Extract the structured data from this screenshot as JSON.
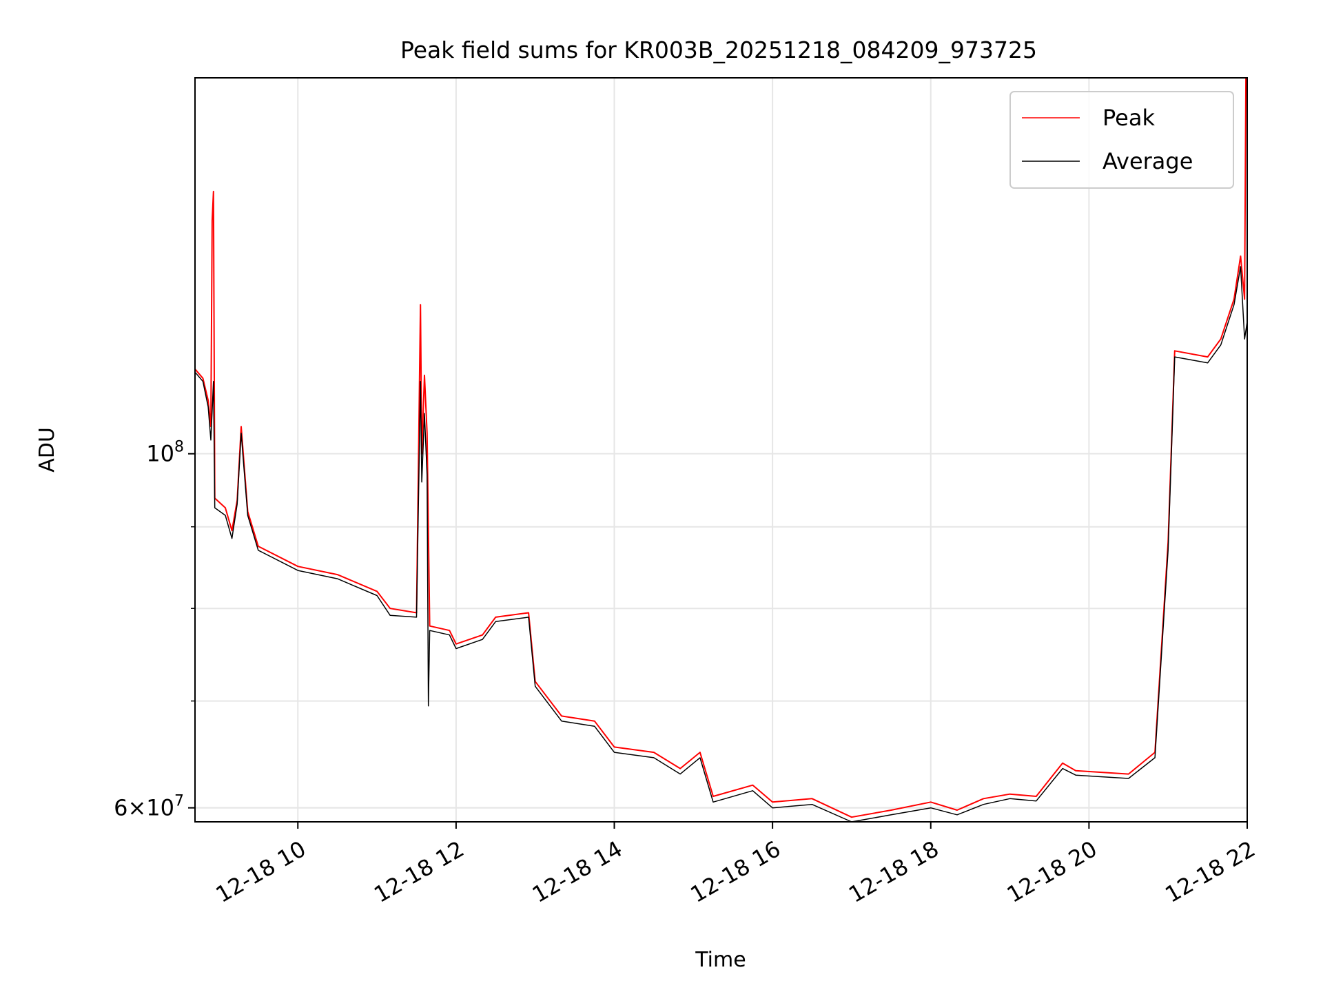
{
  "chart_data": {
    "type": "line",
    "title": "Peak field sums for KR003B_20251218_084209_973725",
    "xlabel": "Time",
    "ylabel": "ADU",
    "x_axis": {
      "scale": "time",
      "range": [
        "2025-12-18 08:42",
        "2025-12-18 22:00"
      ],
      "ticks": [
        "2025-12-18 10:00",
        "2025-12-18 12:00",
        "2025-12-18 14:00",
        "2025-12-18 16:00",
        "2025-12-18 18:00",
        "2025-12-18 20:00",
        "2025-12-18 22:00"
      ],
      "tick_labels": [
        "12-18 10",
        "12-18 12",
        "12-18 14",
        "12-18 16",
        "12-18 18",
        "12-18 20",
        "12-18 22"
      ]
    },
    "y_axis": {
      "scale": "log",
      "range": [
        58800000,
        172000000
      ],
      "major_tick_values": [
        100000000,
        60000000
      ],
      "major_tick_labels": [
        {
          "base": "10",
          "exp": "8"
        },
        {
          "coef": "6",
          "base": "10",
          "exp": "7"
        }
      ],
      "minor_ticks": [
        60000000,
        70000000,
        80000000,
        90000000
      ]
    },
    "grid": true,
    "legend": {
      "position": "top-right",
      "entries": [
        "Peak",
        "Average"
      ]
    },
    "series": [
      {
        "name": "Peak",
        "color": "#ff0000",
        "points": [
          [
            "2025-12-18 08:42",
            113000000
          ],
          [
            "2025-12-18 08:48",
            111500000
          ],
          [
            "2025-12-18 08:52",
            108000000
          ],
          [
            "2025-12-18 08:54",
            104000000
          ],
          [
            "2025-12-18 08:55",
            140000000
          ],
          [
            "2025-12-18 08:56",
            146000000
          ],
          [
            "2025-12-18 08:57",
            93800000
          ],
          [
            "2025-12-18 09:05",
            92500000
          ],
          [
            "2025-12-18 09:10",
            89500000
          ],
          [
            "2025-12-18 09:14",
            93500000
          ],
          [
            "2025-12-18 09:17",
            104000000
          ],
          [
            "2025-12-18 09:22",
            92000000
          ],
          [
            "2025-12-18 09:30",
            87500000
          ],
          [
            "2025-12-18 10:00",
            85000000
          ],
          [
            "2025-12-18 10:30",
            84000000
          ],
          [
            "2025-12-18 11:00",
            82000000
          ],
          [
            "2025-12-18 11:10",
            80000000
          ],
          [
            "2025-12-18 11:30",
            79500000
          ],
          [
            "2025-12-18 11:33",
            124000000
          ],
          [
            "2025-12-18 11:34",
            100000000
          ],
          [
            "2025-12-18 11:36",
            112000000
          ],
          [
            "2025-12-18 11:38",
            103000000
          ],
          [
            "2025-12-18 11:40",
            78000000
          ],
          [
            "2025-12-18 11:55",
            77500000
          ],
          [
            "2025-12-18 12:00",
            76000000
          ],
          [
            "2025-12-18 12:20",
            77000000
          ],
          [
            "2025-12-18 12:30",
            79000000
          ],
          [
            "2025-12-18 12:55",
            79500000
          ],
          [
            "2025-12-18 13:00",
            72000000
          ],
          [
            "2025-12-18 13:20",
            68500000
          ],
          [
            "2025-12-18 13:45",
            68000000
          ],
          [
            "2025-12-18 14:00",
            65500000
          ],
          [
            "2025-12-18 14:30",
            65000000
          ],
          [
            "2025-12-18 14:50",
            63500000
          ],
          [
            "2025-12-18 15:05",
            65000000
          ],
          [
            "2025-12-18 15:15",
            61000000
          ],
          [
            "2025-12-18 15:45",
            62000000
          ],
          [
            "2025-12-18 16:00",
            60500000
          ],
          [
            "2025-12-18 16:30",
            60800000
          ],
          [
            "2025-12-18 17:00",
            59200000
          ],
          [
            "2025-12-18 17:30",
            59800000
          ],
          [
            "2025-12-18 18:00",
            60500000
          ],
          [
            "2025-12-18 18:20",
            59800000
          ],
          [
            "2025-12-18 18:40",
            60800000
          ],
          [
            "2025-12-18 19:00",
            61200000
          ],
          [
            "2025-12-18 19:20",
            61000000
          ],
          [
            "2025-12-18 19:40",
            64000000
          ],
          [
            "2025-12-18 19:50",
            63300000
          ],
          [
            "2025-12-18 20:30",
            63000000
          ],
          [
            "2025-12-18 20:50",
            65000000
          ],
          [
            "2025-12-18 21:00",
            88000000
          ],
          [
            "2025-12-18 21:05",
            116000000
          ],
          [
            "2025-12-18 21:30",
            115000000
          ],
          [
            "2025-12-18 21:40",
            118000000
          ],
          [
            "2025-12-18 21:50",
            125000000
          ],
          [
            "2025-12-18 21:55",
            133000000
          ],
          [
            "2025-12-18 21:58",
            125000000
          ],
          [
            "2025-12-18 21:59",
            172000000
          ],
          [
            "2025-12-18 22:00",
            170000000
          ]
        ]
      },
      {
        "name": "Average",
        "color": "#000000",
        "points": [
          [
            "2025-12-18 08:42",
            112500000
          ],
          [
            "2025-12-18 08:48",
            111000000
          ],
          [
            "2025-12-18 08:52",
            107000000
          ],
          [
            "2025-12-18 08:54",
            102000000
          ],
          [
            "2025-12-18 08:56",
            111000000
          ],
          [
            "2025-12-18 08:57",
            92500000
          ],
          [
            "2025-12-18 09:05",
            91500000
          ],
          [
            "2025-12-18 09:10",
            88500000
          ],
          [
            "2025-12-18 09:14",
            93000000
          ],
          [
            "2025-12-18 09:17",
            103000000
          ],
          [
            "2025-12-18 09:22",
            91500000
          ],
          [
            "2025-12-18 09:30",
            87000000
          ],
          [
            "2025-12-18 10:00",
            84500000
          ],
          [
            "2025-12-18 10:30",
            83500000
          ],
          [
            "2025-12-18 11:00",
            81500000
          ],
          [
            "2025-12-18 11:10",
            79200000
          ],
          [
            "2025-12-18 11:30",
            79000000
          ],
          [
            "2025-12-18 11:33",
            111000000
          ],
          [
            "2025-12-18 11:34",
            96000000
          ],
          [
            "2025-12-18 11:36",
            106000000
          ],
          [
            "2025-12-18 11:38",
            97000000
          ],
          [
            "2025-12-18 11:39",
            69500000
          ],
          [
            "2025-12-18 11:40",
            77500000
          ],
          [
            "2025-12-18 11:55",
            77000000
          ],
          [
            "2025-12-18 12:00",
            75500000
          ],
          [
            "2025-12-18 12:20",
            76500000
          ],
          [
            "2025-12-18 12:30",
            78500000
          ],
          [
            "2025-12-18 12:55",
            79000000
          ],
          [
            "2025-12-18 13:00",
            71500000
          ],
          [
            "2025-12-18 13:20",
            68000000
          ],
          [
            "2025-12-18 13:45",
            67500000
          ],
          [
            "2025-12-18 14:00",
            65000000
          ],
          [
            "2025-12-18 14:30",
            64500000
          ],
          [
            "2025-12-18 14:50",
            63000000
          ],
          [
            "2025-12-18 15:05",
            64500000
          ],
          [
            "2025-12-18 15:15",
            60500000
          ],
          [
            "2025-12-18 15:45",
            61500000
          ],
          [
            "2025-12-18 16:00",
            60000000
          ],
          [
            "2025-12-18 16:30",
            60300000
          ],
          [
            "2025-12-18 17:00",
            58800000
          ],
          [
            "2025-12-18 17:30",
            59400000
          ],
          [
            "2025-12-18 18:00",
            60000000
          ],
          [
            "2025-12-18 18:20",
            59400000
          ],
          [
            "2025-12-18 18:40",
            60300000
          ],
          [
            "2025-12-18 19:00",
            60800000
          ],
          [
            "2025-12-18 19:20",
            60600000
          ],
          [
            "2025-12-18 19:40",
            63500000
          ],
          [
            "2025-12-18 19:50",
            62900000
          ],
          [
            "2025-12-18 20:30",
            62600000
          ],
          [
            "2025-12-18 20:50",
            64500000
          ],
          [
            "2025-12-18 21:00",
            87000000
          ],
          [
            "2025-12-18 21:05",
            115000000
          ],
          [
            "2025-12-18 21:30",
            114000000
          ],
          [
            "2025-12-18 21:40",
            117000000
          ],
          [
            "2025-12-18 21:50",
            124000000
          ],
          [
            "2025-12-18 21:55",
            131000000
          ],
          [
            "2025-12-18 21:58",
            118000000
          ],
          [
            "2025-12-18 22:00",
            121000000
          ]
        ]
      }
    ]
  }
}
